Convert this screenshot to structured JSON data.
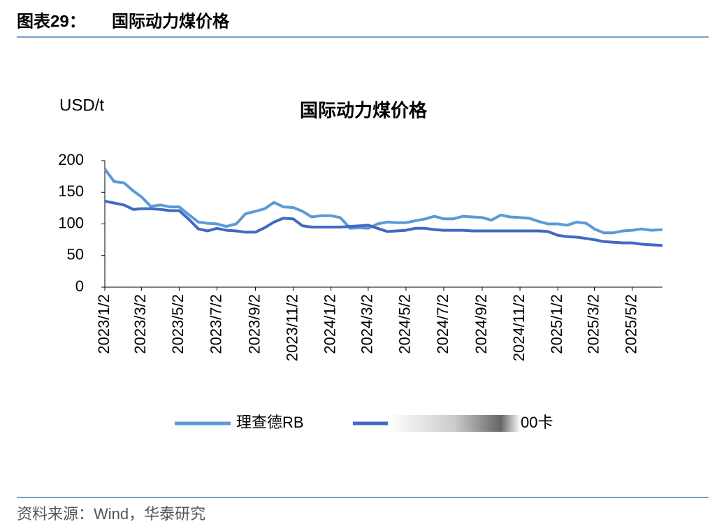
{
  "header": {
    "label": "图表29：",
    "title": "国际动力煤价格"
  },
  "footer": {
    "source": "资料来源：Wind，华泰研究"
  },
  "chart_data": {
    "type": "line",
    "title": "国际动力煤价格",
    "y_label": "USD/t",
    "x": [
      "2023/1/2",
      "2023/1/17",
      "2023/2/2",
      "2023/2/17",
      "2023/3/2",
      "2023/3/17",
      "2023/4/2",
      "2023/4/17",
      "2023/5/2",
      "2023/5/17",
      "2023/6/2",
      "2023/6/17",
      "2023/7/2",
      "2023/7/17",
      "2023/8/2",
      "2023/8/17",
      "2023/9/2",
      "2023/9/17",
      "2023/10/2",
      "2023/10/17",
      "2023/11/2",
      "2023/11/17",
      "2023/12/2",
      "2023/12/17",
      "2024/1/2",
      "2024/1/17",
      "2024/2/2",
      "2024/2/17",
      "2024/3/2",
      "2024/3/17",
      "2024/4/2",
      "2024/4/17",
      "2024/5/2",
      "2024/5/17",
      "2024/6/2",
      "2024/6/17",
      "2024/7/2",
      "2024/7/17",
      "2024/8/2",
      "2024/8/17",
      "2024/9/2",
      "2024/9/17",
      "2024/10/2",
      "2024/10/17",
      "2024/11/2",
      "2024/11/17",
      "2024/12/2",
      "2024/12/17",
      "2025/1/2",
      "2025/1/17",
      "2025/2/2",
      "2025/2/17",
      "2025/3/2",
      "2025/3/17",
      "2025/4/2",
      "2025/4/17",
      "2025/5/2",
      "2025/5/17",
      "2025/6/2",
      "2025/6/20"
    ],
    "series": [
      {
        "name": "理查德RB",
        "color": "#5b9bd5",
        "values": [
          187,
          167,
          165,
          152,
          143,
          128,
          130,
          127,
          127,
          115,
          103,
          101,
          100,
          96,
          100,
          116,
          120,
          124,
          134,
          127,
          126,
          120,
          111,
          113,
          113,
          110,
          93,
          94,
          93,
          100,
          103,
          102,
          102,
          105,
          108,
          112,
          108,
          108,
          112,
          111,
          110,
          106,
          114,
          111,
          110,
          109,
          104,
          100,
          100,
          98,
          103,
          101,
          92,
          86,
          86,
          89,
          90,
          92,
          90,
          91
        ]
      },
      {
        "name": "00卡",
        "color": "#4169c4",
        "values": [
          136,
          133,
          130,
          123,
          124,
          124,
          123,
          121,
          121,
          108,
          92,
          89,
          93,
          90,
          89,
          87,
          87,
          94,
          103,
          109,
          108,
          97,
          95,
          95,
          95,
          95,
          96,
          97,
          98,
          93,
          88,
          89,
          90,
          93,
          93,
          91,
          90,
          90,
          90,
          89,
          89,
          89,
          89,
          89,
          89,
          89,
          89,
          88,
          82,
          80,
          79,
          77,
          75,
          72,
          71,
          70,
          70,
          68,
          67,
          66
        ]
      }
    ],
    "xlim": [
      "2023/1/2",
      "2025/6/20"
    ],
    "xticks": [
      "2023/1/2",
      "2023/3/2",
      "2023/5/2",
      "2023/7/2",
      "2023/9/2",
      "2023/11/2",
      "2024/1/2",
      "2024/3/2",
      "2024/5/2",
      "2024/7/2",
      "2024/9/2",
      "2024/11/2",
      "2025/1/2",
      "2025/3/2",
      "2025/5/2"
    ],
    "ylim": [
      0,
      200
    ],
    "yticks": [
      0,
      50,
      100,
      150,
      200
    ],
    "grid": false,
    "legend": "bottom"
  }
}
